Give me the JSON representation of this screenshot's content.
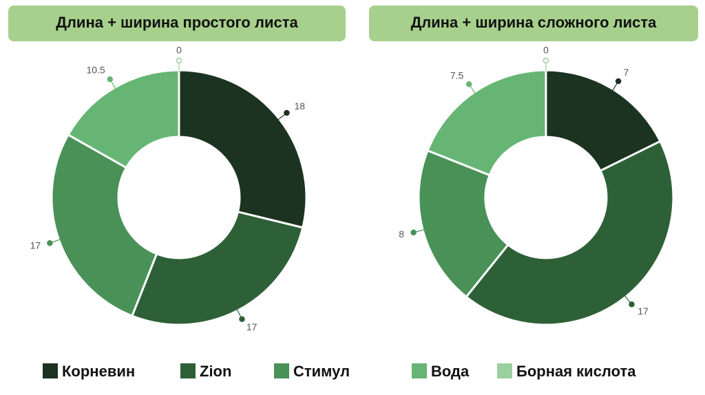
{
  "chart_data": [
    {
      "type": "donut",
      "title": "Длина + ширина простого листа",
      "categories": [
        "Корневин",
        "Zion",
        "Стимул",
        "Вода",
        "Борная кислота"
      ],
      "values": [
        18,
        17,
        17,
        10.5,
        0
      ],
      "colors": [
        "#1b3320",
        "#2e6038",
        "#4a9158",
        "#67b574",
        "#9ccf9f"
      ]
    },
    {
      "type": "donut",
      "title": "Длина + ширина сложного листа",
      "categories": [
        "Корневин",
        "Zion",
        "Стимул",
        "Вода",
        "Борная кислота"
      ],
      "values": [
        7,
        17,
        8,
        7.5,
        0
      ],
      "colors": [
        "#1b3320",
        "#2e6038",
        "#4a9158",
        "#67b574",
        "#9ccf9f"
      ]
    }
  ]
}
